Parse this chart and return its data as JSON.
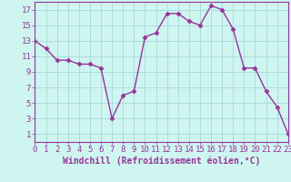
{
  "x": [
    0,
    1,
    2,
    3,
    4,
    5,
    6,
    7,
    8,
    9,
    10,
    11,
    12,
    13,
    14,
    15,
    16,
    17,
    18,
    19,
    20,
    21,
    22,
    23
  ],
  "y": [
    13,
    12,
    10.5,
    10.5,
    10,
    10,
    9.5,
    3,
    6,
    6.5,
    13.5,
    14,
    16.5,
    16.5,
    15.5,
    15,
    17.5,
    17,
    14.5,
    9.5,
    9.5,
    6.5,
    4.5,
    1
  ],
  "xlabel": "Windchill (Refroidissement éolien,°C)",
  "xlim": [
    0,
    23
  ],
  "ylim": [
    0,
    18
  ],
  "xticks": [
    0,
    1,
    2,
    3,
    4,
    5,
    6,
    7,
    8,
    9,
    10,
    11,
    12,
    13,
    14,
    15,
    16,
    17,
    18,
    19,
    20,
    21,
    22,
    23
  ],
  "yticks": [
    1,
    3,
    5,
    7,
    9,
    11,
    13,
    15,
    17
  ],
  "line_color": "#993399",
  "marker": "D",
  "marker_size": 2.5,
  "bg_color": "#cef5f0",
  "grid_color": "#aadddd",
  "xlabel_fontsize": 7.0,
  "tick_fontsize": 6.5,
  "linewidth": 1.0
}
